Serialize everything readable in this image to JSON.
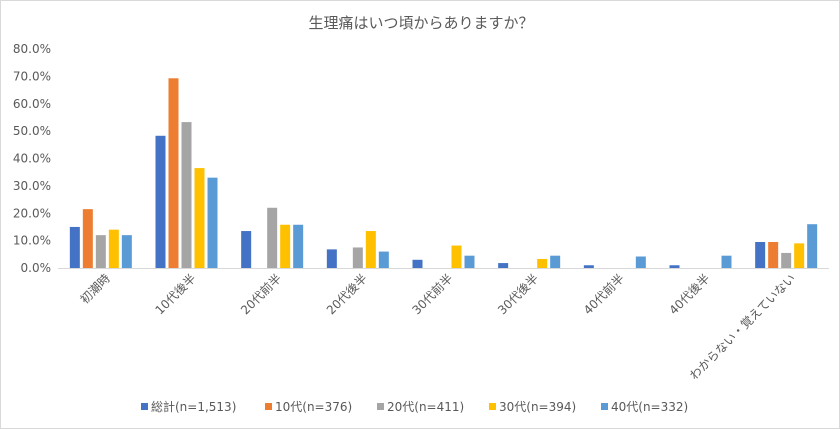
{
  "chart_data": {
    "type": "bar",
    "title": "生理痛はいつ頃からありますか？",
    "xlabel": "",
    "ylabel": "",
    "ylim": [
      0,
      0.8
    ],
    "yticks": [
      "0.0%",
      "10.0%",
      "20.0%",
      "30.0%",
      "40.0%",
      "50.0%",
      "60.0%",
      "70.0%",
      "80.0%"
    ],
    "grid": false,
    "legend_position": "bottom",
    "categories": [
      "初潮時",
      "10代後半",
      "20代前半",
      "20代後半",
      "30代前半",
      "30代後半",
      "40代前半",
      "40代後半",
      "わからない・覚えていない"
    ],
    "series": [
      {
        "name": "総計(n=1,513)",
        "color": "#4472c4",
        "values": [
          0.15,
          0.483,
          0.135,
          0.068,
          0.03,
          0.018,
          0.01,
          0.01,
          0.095
        ]
      },
      {
        "name": "10代(n=376)",
        "color": "#ed7d31",
        "values": [
          0.215,
          0.693,
          0,
          0,
          0,
          0,
          0,
          0,
          0.095
        ]
      },
      {
        "name": "20代(n=411)",
        "color": "#a5a5a5",
        "values": [
          0.12,
          0.533,
          0.22,
          0.075,
          0,
          0,
          0,
          0,
          0.055
        ]
      },
      {
        "name": "30代(n=394)",
        "color": "#ffc000",
        "values": [
          0.14,
          0.365,
          0.158,
          0.135,
          0.082,
          0.033,
          0,
          0,
          0.09
        ]
      },
      {
        "name": "40代(n=332)",
        "color": "#5b9bd5",
        "values": [
          0.12,
          0.33,
          0.158,
          0.06,
          0.045,
          0.045,
          0.042,
          0.045,
          0.16
        ]
      }
    ]
  }
}
